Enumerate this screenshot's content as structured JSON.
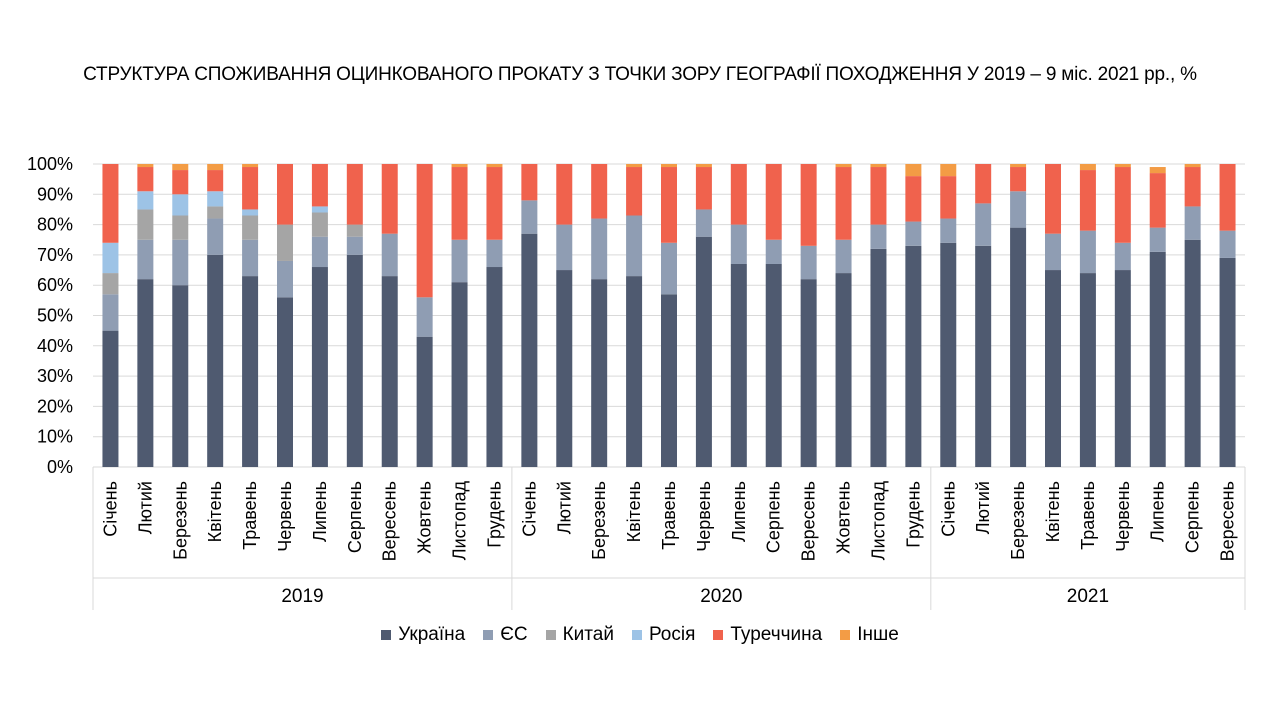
{
  "chart_data": {
    "type": "bar",
    "stacked": true,
    "title": "СТРУКТУРА СПОЖИВАННЯ ОЦИНКОВАНОГО ПРОКАТУ З ТОЧКИ ЗОРУ ГЕОГРАФІЇ ПОХОДЖЕННЯ У 2019 – 9 міс. 2021 рр., %",
    "ylim": [
      0,
      100
    ],
    "yticks": [
      "0%",
      "10%",
      "20%",
      "30%",
      "40%",
      "50%",
      "60%",
      "70%",
      "80%",
      "90%",
      "100%"
    ],
    "grid": true,
    "legend_position": "bottom",
    "groups": [
      {
        "label": "2019",
        "categories": [
          "Січень",
          "Лютий",
          "Березень",
          "Квітень",
          "Травень",
          "Червень",
          "Липень",
          "Серпень",
          "Вересень",
          "Жовтень",
          "Листопад",
          "Грудень"
        ]
      },
      {
        "label": "2020",
        "categories": [
          "Січень",
          "Лютий",
          "Березень",
          "Квітень",
          "Травень",
          "Червень",
          "Липень",
          "Серпень",
          "Вересень",
          "Жовтень",
          "Листопад",
          "Грудень"
        ]
      },
      {
        "label": "2021",
        "categories": [
          "Січень",
          "Лютий",
          "Березень",
          "Квітень",
          "Травень",
          "Червень",
          "Липень",
          "Серпень",
          "Вересень"
        ]
      }
    ],
    "series": [
      {
        "name": "Україна",
        "color": "#4f5a70",
        "values": [
          45,
          62,
          60,
          70,
          63,
          56,
          66,
          70,
          63,
          43,
          61,
          66,
          77,
          65,
          62,
          63,
          57,
          76,
          67,
          67,
          62,
          64,
          72,
          73,
          74,
          73,
          79,
          65,
          64,
          65,
          71,
          75,
          69
        ]
      },
      {
        "name": "ЄС",
        "color": "#8f9db3",
        "values": [
          12,
          13,
          15,
          12,
          12,
          12,
          10,
          6,
          14,
          13,
          14,
          9,
          11,
          15,
          20,
          20,
          17,
          9,
          13,
          8,
          11,
          11,
          8,
          8,
          8,
          14,
          12,
          12,
          14,
          9,
          8,
          11,
          9
        ]
      },
      {
        "name": "Китай",
        "color": "#a5a5a5",
        "values": [
          7,
          10,
          8,
          4,
          8,
          12,
          8,
          4,
          0,
          0,
          0,
          0,
          0,
          0,
          0,
          0,
          0,
          0,
          0,
          0,
          0,
          0,
          0,
          0,
          0,
          0,
          0,
          0,
          0,
          0,
          0,
          0,
          0
        ]
      },
      {
        "name": "Росія",
        "color": "#9dc3e6",
        "values": [
          10,
          6,
          7,
          5,
          2,
          0,
          2,
          0,
          0,
          0,
          0,
          0,
          0,
          0,
          0,
          0,
          0,
          0,
          0,
          0,
          0,
          0,
          0,
          0,
          0,
          0,
          0,
          0,
          0,
          0,
          0,
          0,
          0
        ]
      },
      {
        "name": "Туреччина",
        "color": "#f0624d",
        "values": [
          26,
          8,
          8,
          7,
          14,
          20,
          14,
          20,
          23,
          44,
          24,
          24,
          12,
          20,
          18,
          16,
          25,
          14,
          20,
          25,
          27,
          24,
          19,
          15,
          14,
          13,
          8,
          23,
          20,
          25,
          18,
          13,
          22
        ]
      },
      {
        "name": "Інше",
        "color": "#f39c45",
        "values": [
          0,
          1,
          2,
          2,
          1,
          0,
          0,
          0,
          0,
          0,
          1,
          1,
          0,
          0,
          0,
          1,
          1,
          1,
          0,
          0,
          0,
          1,
          1,
          4,
          4,
          0,
          1,
          0,
          2,
          1,
          2,
          1,
          0
        ]
      }
    ]
  }
}
